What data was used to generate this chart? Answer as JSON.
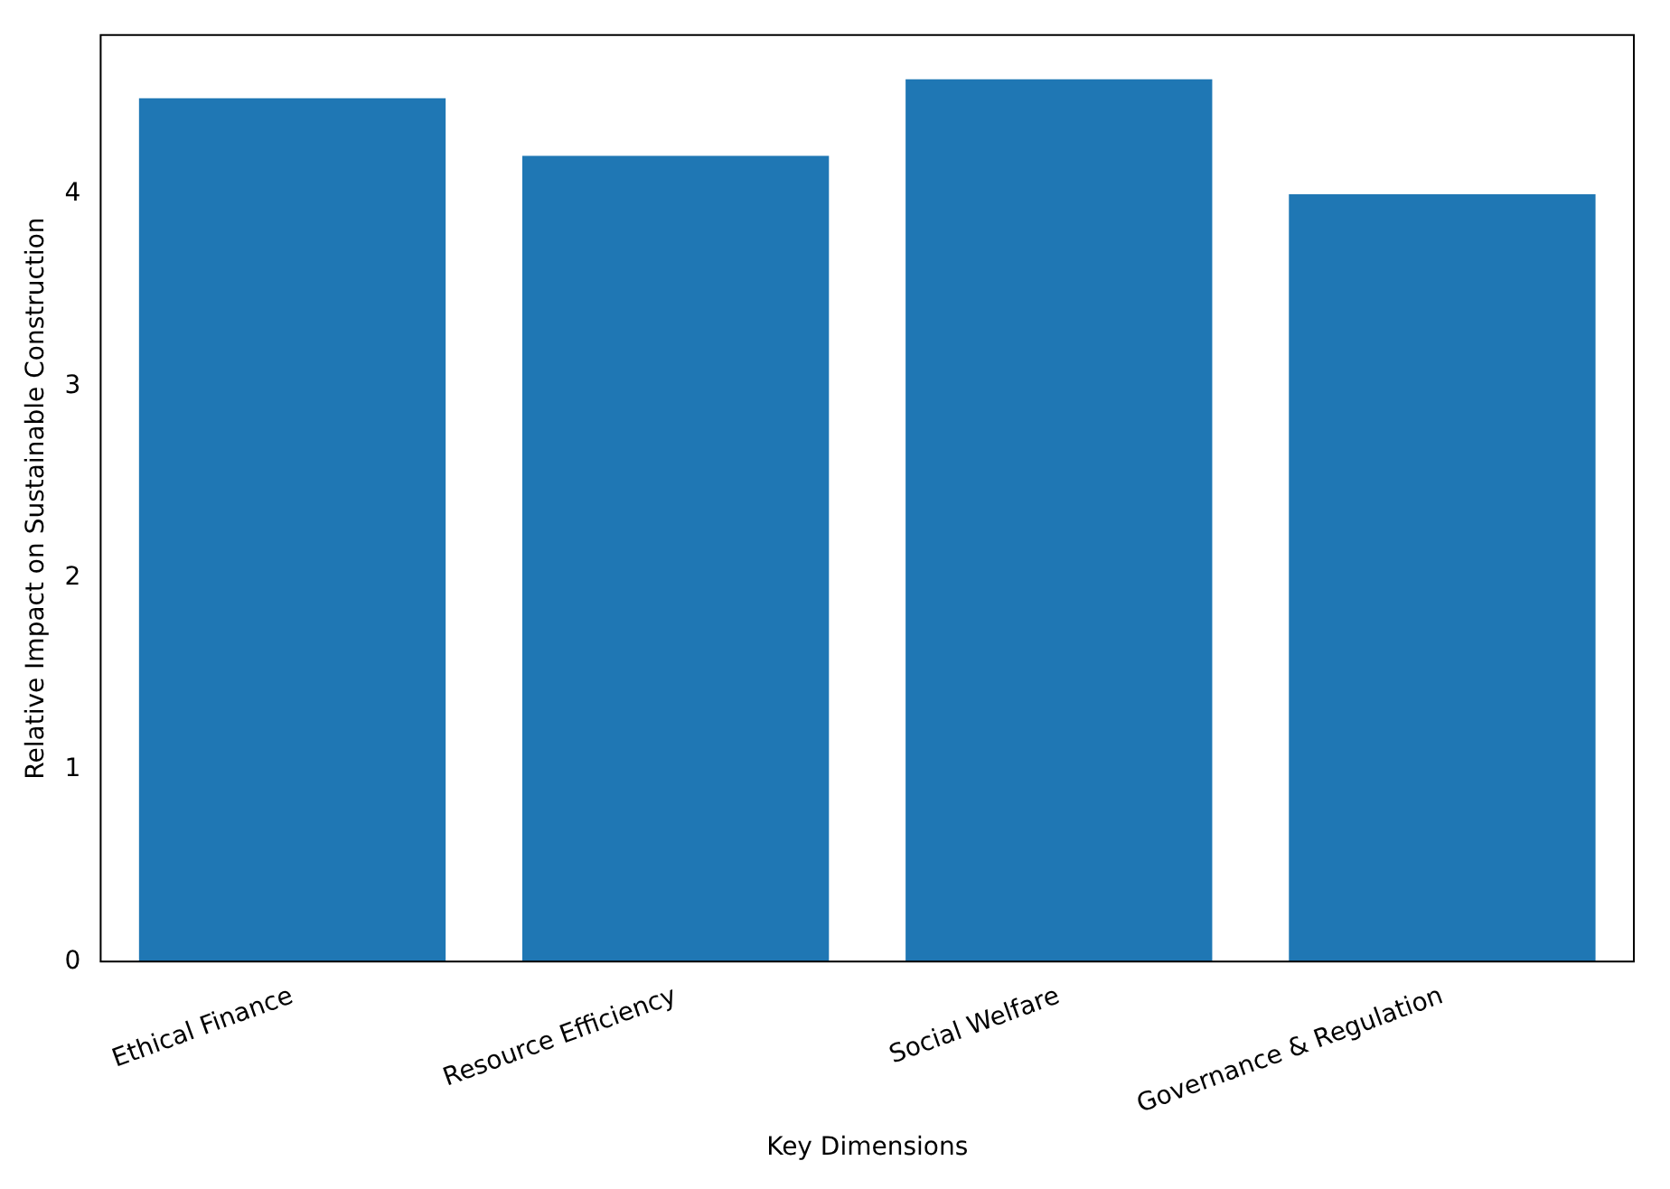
{
  "chart_data": {
    "type": "bar",
    "xlabel": "Key Dimensions",
    "ylabel": "Relative Impact on Sustainable Construction",
    "categories": [
      "Ethical Finance",
      "Resource Efficiency",
      "Social Welfare",
      "Governance & Regulation"
    ],
    "values": [
      4.5,
      4.2,
      4.6,
      4.0
    ],
    "color": "#1f77b4",
    "ylim": [
      0,
      4.83
    ],
    "yticks": [
      0,
      1,
      2,
      3,
      4
    ],
    "grid": false,
    "legend": false
  }
}
